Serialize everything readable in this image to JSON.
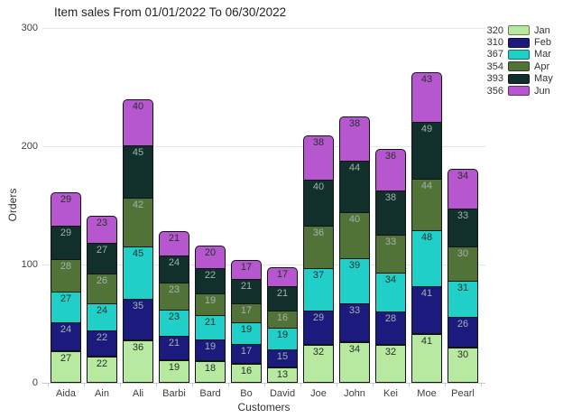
{
  "chart_data": {
    "type": "bar",
    "stacked": true,
    "title": "Item sales From 01/01/2022 To 06/30/2022",
    "xlabel": "Customers",
    "ylabel": "Orders",
    "ylim": [
      0,
      300
    ],
    "yticks": [
      0,
      100,
      200,
      300
    ],
    "grid": true,
    "legend_position": "right",
    "background_color": "#ffffff",
    "categories": [
      "Aida",
      "Ain",
      "Ali",
      "Barbi",
      "Bard",
      "Bo",
      "David",
      "Joe",
      "John",
      "Kei",
      "Moe",
      "Pearl"
    ],
    "series": [
      {
        "name": "Jan",
        "total": 320,
        "color": "#b7e9a0",
        "label_tone": "dark",
        "values": [
          27,
          22,
          36,
          19,
          18,
          16,
          13,
          32,
          34,
          32,
          41,
          30
        ]
      },
      {
        "name": "Feb",
        "total": 310,
        "color": "#1b1b7e",
        "label_tone": "light",
        "values": [
          24,
          22,
          35,
          21,
          19,
          17,
          15,
          29,
          33,
          28,
          41,
          26
        ]
      },
      {
        "name": "Mar",
        "total": 367,
        "color": "#21cfc9",
        "label_tone": "dark",
        "values": [
          27,
          24,
          45,
          23,
          21,
          19,
          19,
          37,
          39,
          34,
          48,
          31
        ]
      },
      {
        "name": "Apr",
        "total": 354,
        "color": "#527338",
        "label_tone": "light",
        "values": [
          28,
          26,
          42,
          23,
          19,
          17,
          16,
          36,
          40,
          33,
          44,
          30
        ]
      },
      {
        "name": "May",
        "total": 393,
        "color": "#112f2b",
        "label_tone": "light",
        "values": [
          29,
          27,
          45,
          24,
          22,
          21,
          21,
          40,
          44,
          38,
          49,
          33
        ]
      },
      {
        "name": "Jun",
        "total": 356,
        "color": "#b757cf",
        "label_tone": "dark",
        "values": [
          29,
          23,
          40,
          21,
          20,
          17,
          17,
          38,
          38,
          36,
          43,
          34
        ]
      }
    ]
  }
}
